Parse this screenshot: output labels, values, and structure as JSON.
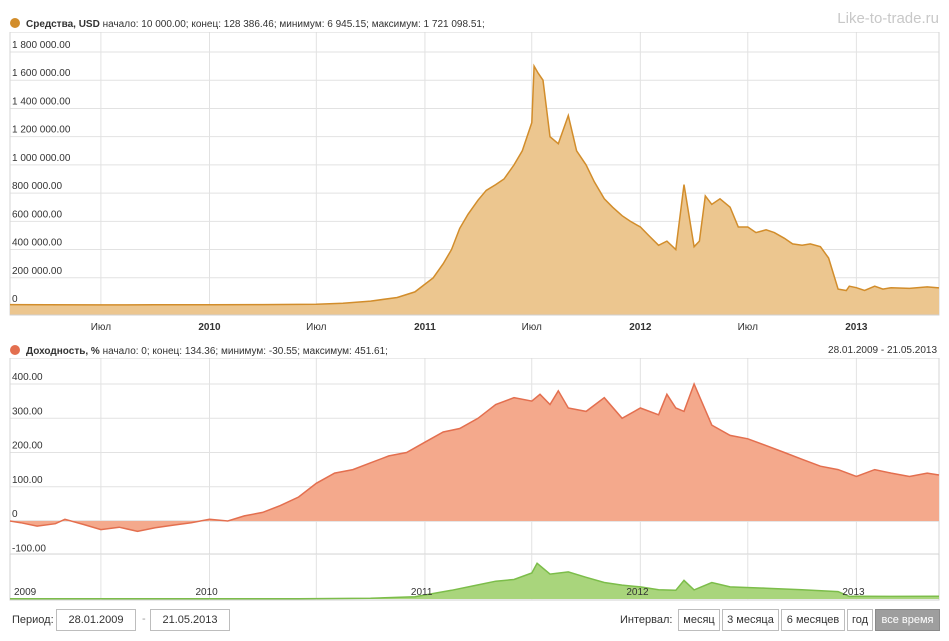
{
  "watermark": "Like-to-trade.ru",
  "date_range_text": "28.01.2009 - 21.05.2013",
  "colors": {
    "funds_line": "#d28d2b",
    "funds_fill": "#ecc68f",
    "yield_line": "#e36f4f",
    "yield_fill": "#f4a98c",
    "navigator_line": "#7cbd4a",
    "navigator_fill": "#a9d57c",
    "grid": "#e2e2e2"
  },
  "funds_header": {
    "name": "Средства, USD",
    "stats": " начало: 10 000.00; конец: 128 386.46; минимум: 6 945.15; максимум: 1 721 098.51;"
  },
  "yield_header": {
    "name": "Доходность, %",
    "stats": " начало: 0; конец: 134.36; минимум: -30.55; максимум: 451.61;"
  },
  "time_axis_labels": [
    "Июл",
    "2010",
    "Июл",
    "2011",
    "Июл",
    "2012",
    "Июл",
    "2013"
  ],
  "navigator_labels": [
    "2009",
    "2010",
    "2011",
    "2012",
    "2013"
  ],
  "chart_data": [
    {
      "type": "area",
      "title": "Средства, USD",
      "ylabel": "",
      "ytick_labels": [
        "0",
        "200 000.00",
        "400 000.00",
        "600 000.00",
        "800 000.00",
        "1 000 000.00",
        "1 200 000.00",
        "1 400 000.00",
        "1 600 000.00",
        "1 800 000.00"
      ],
      "ylim": [
        0,
        1800000
      ],
      "xlim": [
        "2009-01-28",
        "2013-05-21"
      ],
      "summary": {
        "start": 10000.0,
        "end": 128386.46,
        "min": 6945.15,
        "max": 1721098.51
      },
      "series": [
        {
          "name": "Средства, USD",
          "x": [
            "2009-01-28",
            "2009-04-01",
            "2009-07-01",
            "2009-10-01",
            "2010-01-01",
            "2010-04-01",
            "2010-07-01",
            "2010-08-15",
            "2010-10-01",
            "2010-11-15",
            "2010-12-15",
            "2011-01-15",
            "2011-02-01",
            "2011-02-15",
            "2011-03-01",
            "2011-03-15",
            "2011-04-01",
            "2011-04-15",
            "2011-05-01",
            "2011-05-15",
            "2011-06-01",
            "2011-06-15",
            "2011-07-01",
            "2011-07-05",
            "2011-07-12",
            "2011-07-20",
            "2011-08-01",
            "2011-08-15",
            "2011-09-01",
            "2011-09-15",
            "2011-10-01",
            "2011-10-15",
            "2011-11-01",
            "2011-11-15",
            "2011-12-01",
            "2011-12-15",
            "2012-01-01",
            "2012-01-15",
            "2012-02-01",
            "2012-02-15",
            "2012-03-01",
            "2012-03-15",
            "2012-04-01",
            "2012-04-10",
            "2012-04-20",
            "2012-05-01",
            "2012-05-15",
            "2012-06-01",
            "2012-06-15",
            "2012-07-01",
            "2012-07-15",
            "2012-08-01",
            "2012-08-15",
            "2012-09-01",
            "2012-09-15",
            "2012-10-01",
            "2012-10-15",
            "2012-11-01",
            "2012-11-15",
            "2012-12-01",
            "2012-12-15",
            "2012-12-20",
            "2013-01-01",
            "2013-01-15",
            "2013-02-01",
            "2013-02-15",
            "2013-03-01",
            "2013-04-01",
            "2013-05-01",
            "2013-05-21"
          ],
          "values": [
            10000,
            9000,
            8000,
            8500,
            9000,
            10000,
            12000,
            20000,
            35000,
            60000,
            100000,
            200000,
            300000,
            400000,
            550000,
            650000,
            750000,
            820000,
            860000,
            900000,
            1000000,
            1100000,
            1300000,
            1700000,
            1650000,
            1600000,
            1200000,
            1150000,
            1350000,
            1100000,
            1000000,
            880000,
            760000,
            700000,
            640000,
            600000,
            560000,
            500000,
            430000,
            460000,
            400000,
            860000,
            420000,
            460000,
            780000,
            720000,
            760000,
            700000,
            560000,
            560000,
            520000,
            540000,
            520000,
            480000,
            440000,
            430000,
            440000,
            420000,
            340000,
            120000,
            110000,
            140000,
            130000,
            110000,
            140000,
            120000,
            130000,
            125000,
            135000,
            128386
          ]
        }
      ]
    },
    {
      "type": "area",
      "title": "Доходность, %",
      "ylabel": "",
      "ytick_labels": [
        "-100.00",
        "0",
        "100.00",
        "200.00",
        "300.00",
        "400.00"
      ],
      "ylim": [
        -150,
        450
      ],
      "xlim": [
        "2009-01-28",
        "2013-05-21"
      ],
      "summary": {
        "start": 0,
        "end": 134.36,
        "min": -30.55,
        "max": 451.61
      },
      "series": [
        {
          "name": "Доходность, %",
          "x": [
            "2009-01-28",
            "2009-02-15",
            "2009-03-15",
            "2009-04-15",
            "2009-05-01",
            "2009-06-01",
            "2009-07-01",
            "2009-08-01",
            "2009-09-01",
            "2009-10-01",
            "2009-11-01",
            "2009-12-01",
            "2010-01-01",
            "2010-02-01",
            "2010-03-01",
            "2010-04-01",
            "2010-05-01",
            "2010-06-01",
            "2010-07-01",
            "2010-08-01",
            "2010-09-01",
            "2010-10-01",
            "2010-11-01",
            "2010-12-01",
            "2011-01-01",
            "2011-02-01",
            "2011-03-01",
            "2011-04-01",
            "2011-05-01",
            "2011-06-01",
            "2011-07-01",
            "2011-07-15",
            "2011-08-01",
            "2011-08-15",
            "2011-09-01",
            "2011-10-01",
            "2011-11-01",
            "2011-12-01",
            "2012-01-01",
            "2012-02-01",
            "2012-02-15",
            "2012-03-01",
            "2012-03-15",
            "2012-04-01",
            "2012-05-01",
            "2012-06-01",
            "2012-07-01",
            "2012-08-01",
            "2012-09-01",
            "2012-10-01",
            "2012-11-01",
            "2012-12-01",
            "2013-01-01",
            "2013-02-01",
            "2013-03-01",
            "2013-04-01",
            "2013-05-01",
            "2013-05-21"
          ],
          "values": [
            0,
            -5,
            -15,
            -8,
            5,
            -10,
            -25,
            -18,
            -30,
            -20,
            -12,
            -5,
            5,
            0,
            15,
            25,
            45,
            70,
            110,
            140,
            150,
            170,
            190,
            200,
            230,
            260,
            270,
            300,
            340,
            360,
            350,
            370,
            340,
            380,
            330,
            320,
            360,
            300,
            330,
            310,
            370,
            330,
            320,
            400,
            280,
            250,
            240,
            220,
            200,
            180,
            160,
            150,
            130,
            150,
            140,
            130,
            140,
            134.36
          ]
        }
      ]
    },
    {
      "type": "area",
      "title": "",
      "ylim": [
        0,
        1800000
      ],
      "xlim": [
        "2009-01-28",
        "2013-05-21"
      ],
      "series": [
        {
          "name": "",
          "x": [
            "2009-01-28",
            "2010-01-01",
            "2010-06-01",
            "2010-10-01",
            "2010-12-15",
            "2011-02-15",
            "2011-04-01",
            "2011-05-01",
            "2011-06-01",
            "2011-07-01",
            "2011-07-10",
            "2011-08-01",
            "2011-09-01",
            "2011-10-01",
            "2011-11-01",
            "2011-12-01",
            "2012-01-01",
            "2012-02-01",
            "2012-03-01",
            "2012-03-15",
            "2012-04-01",
            "2012-05-01",
            "2012-06-01",
            "2012-08-01",
            "2012-10-01",
            "2012-12-01",
            "2012-12-20",
            "2013-01-01",
            "2013-03-01",
            "2013-05-21"
          ],
          "values": [
            10000,
            9000,
            10000,
            35000,
            100000,
            400000,
            650000,
            820000,
            900000,
            1200000,
            1650000,
            1150000,
            1250000,
            1000000,
            760000,
            640000,
            560000,
            430000,
            400000,
            860000,
            420000,
            760000,
            560000,
            500000,
            430000,
            340000,
            120000,
            130000,
            120000,
            128386
          ]
        }
      ]
    }
  ],
  "period_label": "Период:",
  "period_from": "28.01.2009",
  "period_dash": "-",
  "period_to": "21.05.2013",
  "interval_label": "Интервал:",
  "interval_buttons": [
    "месяц",
    "3 месяца",
    "6 месяцев",
    "год",
    "все время"
  ],
  "active_interval": "все время"
}
